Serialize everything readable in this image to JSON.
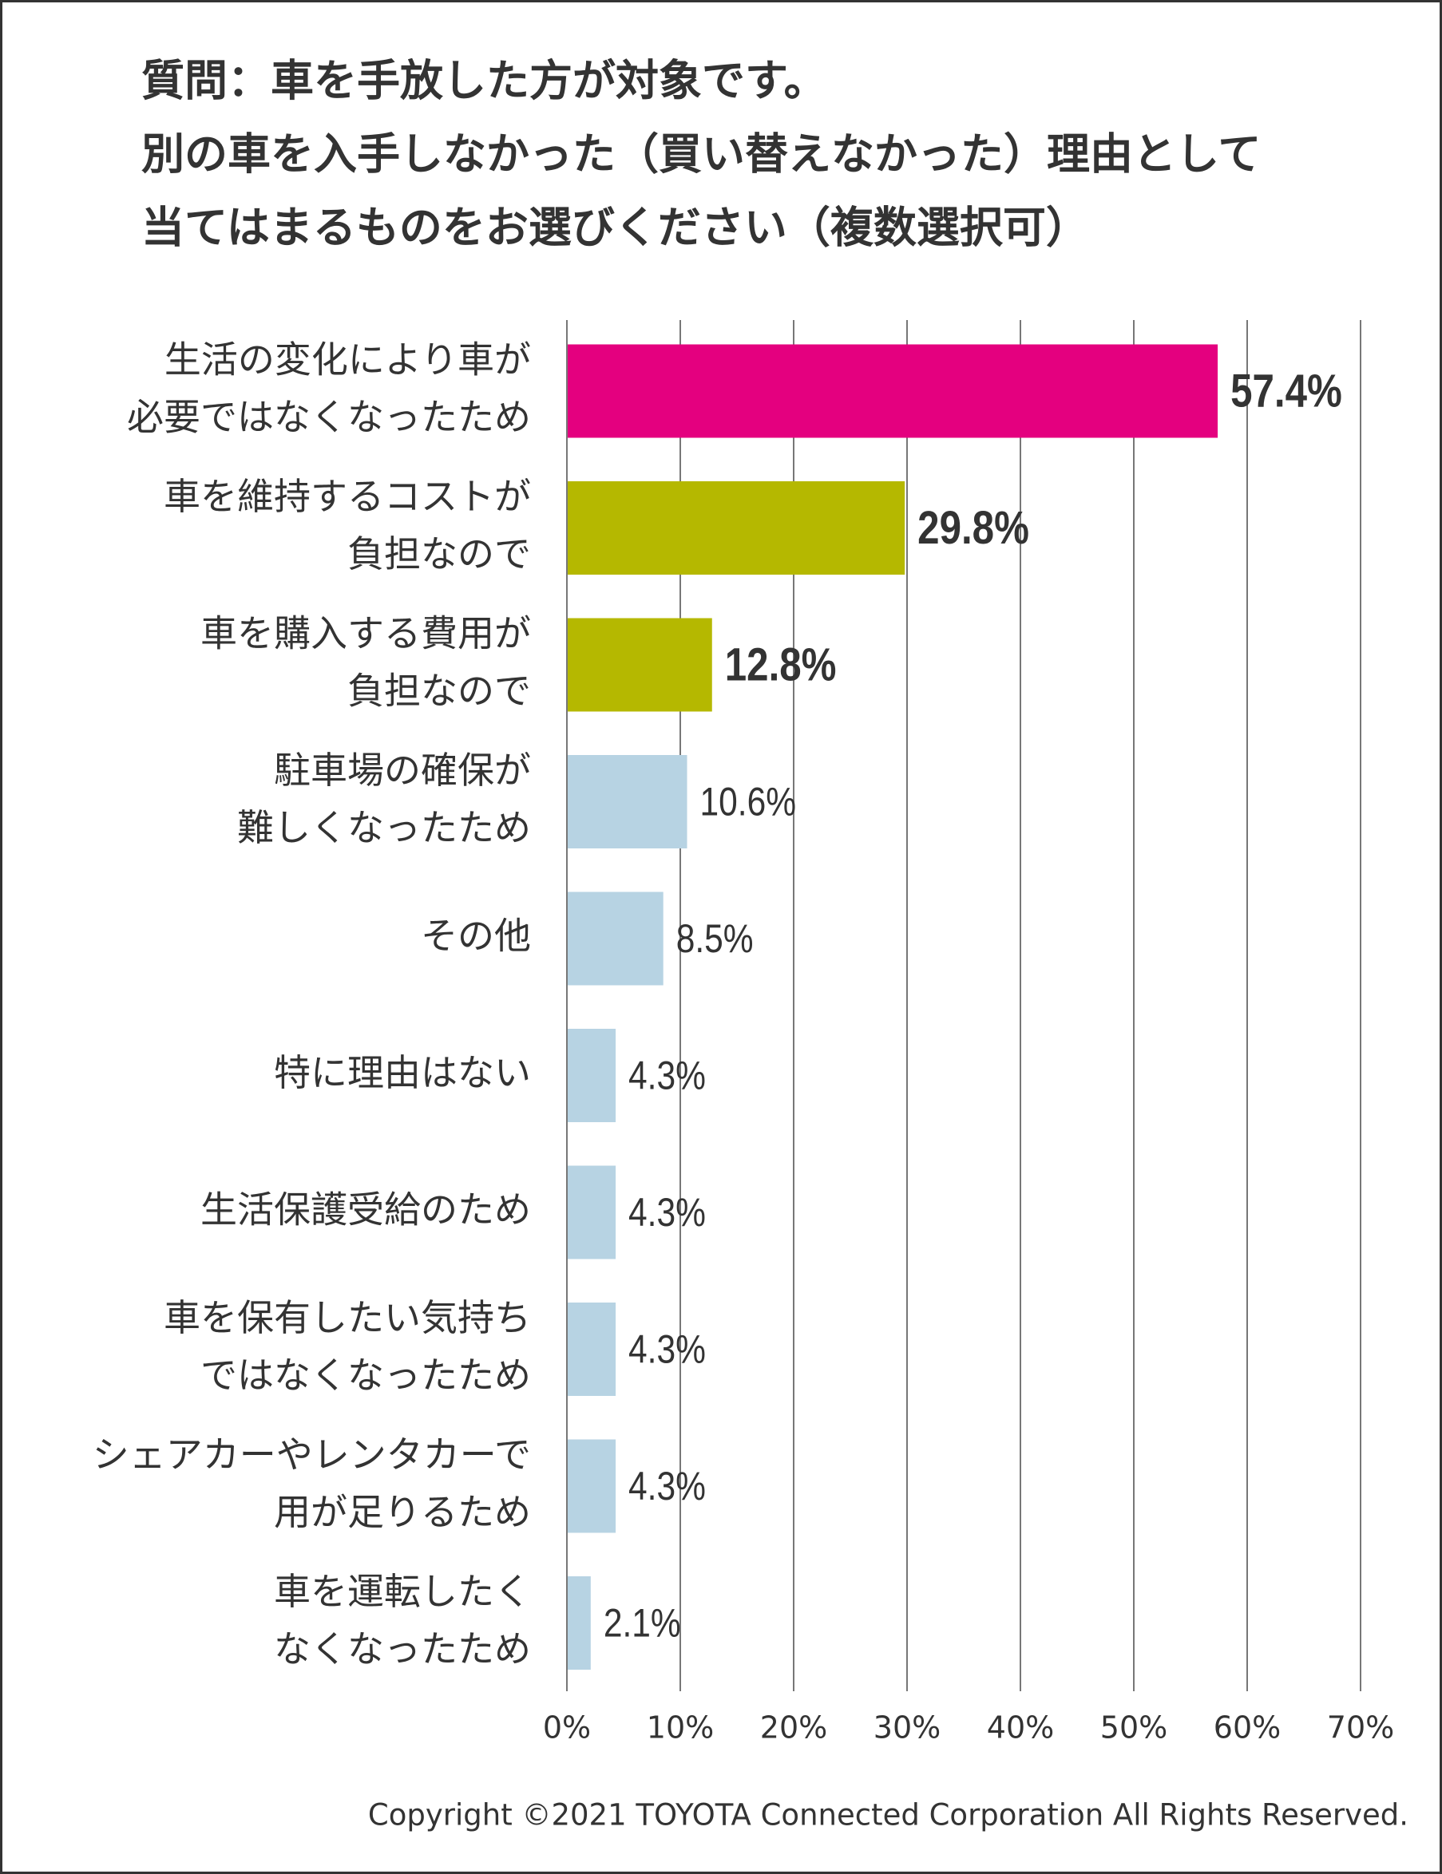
{
  "chart_data": {
    "type": "bar",
    "orientation": "horizontal",
    "title": [
      "質問：車を手放した方が対象です。",
      "別の車を入手しなかった（買い替えなかった）理由として",
      "当てはまるものをお選びください（複数選択可）"
    ],
    "categories": [
      [
        "生活の変化により車が",
        "必要ではなくなったため"
      ],
      [
        "車を維持するコストが",
        "負担なので"
      ],
      [
        "車を購入する費用が",
        "負担なので"
      ],
      [
        "駐車場の確保が",
        "難しくなったため"
      ],
      [
        "その他"
      ],
      [
        "特に理由はない"
      ],
      [
        "生活保護受給のため"
      ],
      [
        "車を保有したい気持ち",
        "ではなくなったため"
      ],
      [
        "シェアカーやレンタカーで",
        "用が足りるため"
      ],
      [
        "車を運転したく",
        "なくなったため"
      ]
    ],
    "values": [
      57.4,
      29.8,
      12.8,
      10.6,
      8.5,
      4.3,
      4.3,
      4.3,
      4.3,
      2.1
    ],
    "value_labels": [
      "57.4%",
      "29.8%",
      "12.8%",
      "10.6%",
      "8.5%",
      "4.3%",
      "4.3%",
      "4.3%",
      "4.3%",
      "2.1%"
    ],
    "colors": [
      "#e4007f",
      "#b5b800",
      "#b5b800",
      "#b7d3e3",
      "#b7d3e3",
      "#b7d3e3",
      "#b7d3e3",
      "#b7d3e3",
      "#b7d3e3",
      "#b7d3e3"
    ],
    "value_label_colors": [
      "#e4007f",
      "#b5b800",
      "#b5b800",
      "#333333",
      "#333333",
      "#333333",
      "#333333",
      "#333333",
      "#333333",
      "#333333"
    ],
    "xlim": [
      0,
      70
    ],
    "xticks": [
      {
        "value": 0,
        "label": "0%"
      },
      {
        "value": 10,
        "label": "10%"
      },
      {
        "value": 20,
        "label": "20%"
      },
      {
        "value": 30,
        "label": "30%"
      },
      {
        "value": 40,
        "label": "40%"
      },
      {
        "value": 50,
        "label": "50%"
      },
      {
        "value": 60,
        "label": "60%"
      },
      {
        "value": 70,
        "label": "70%"
      }
    ],
    "grid": true,
    "footer": "Copyright ©2021 TOYOTA Connected Corporation All Rights Reserved."
  }
}
